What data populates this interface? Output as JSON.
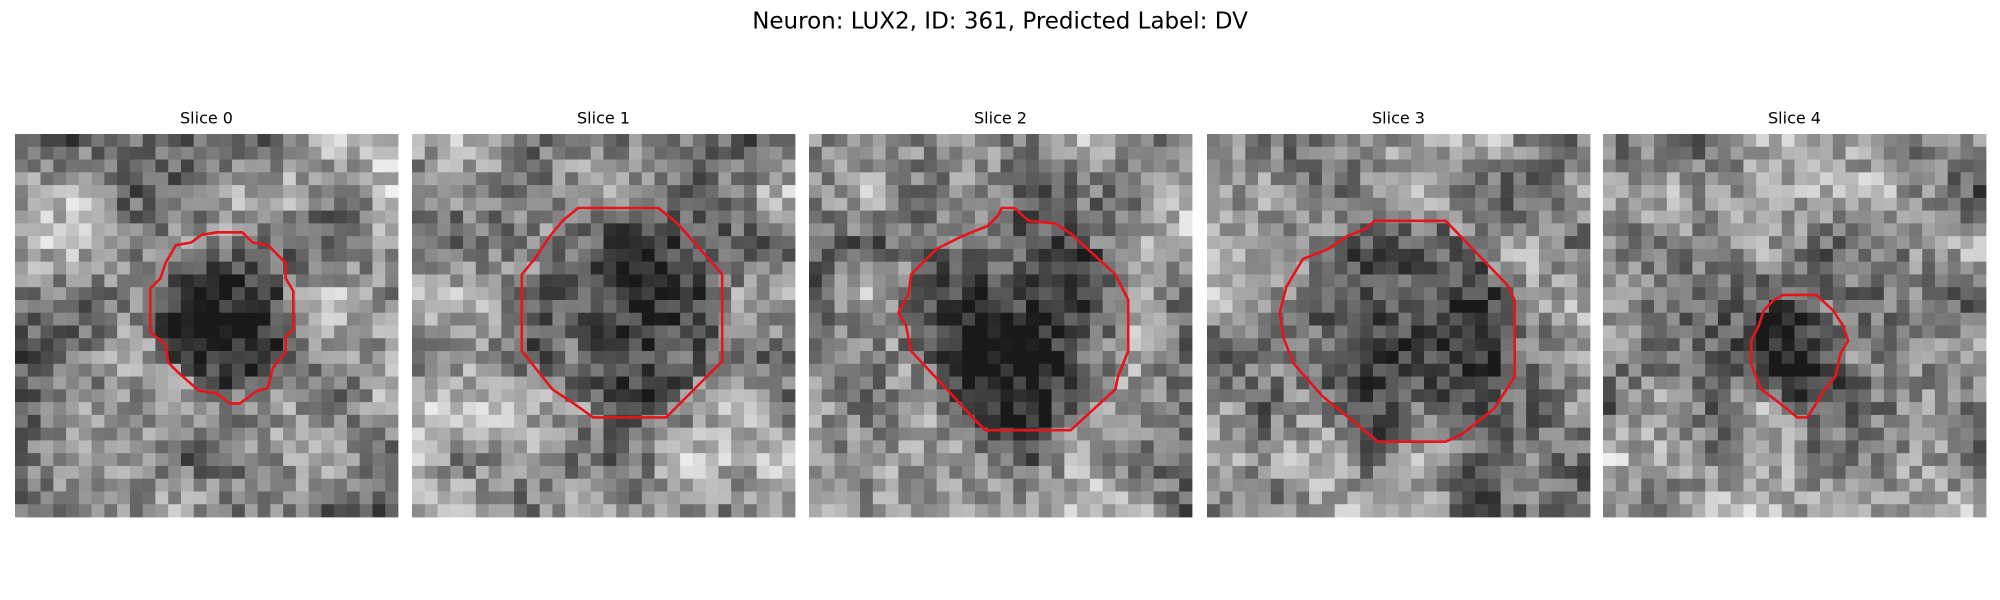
{
  "title": "Neuron: LUX2, ID: 361, Predicted Label: DV",
  "panels": [
    {
      "title": "Slice 0"
    },
    {
      "title": "Slice 1"
    },
    {
      "title": "Slice 2"
    },
    {
      "title": "Slice 3"
    },
    {
      "title": "Slice 4"
    }
  ]
}
